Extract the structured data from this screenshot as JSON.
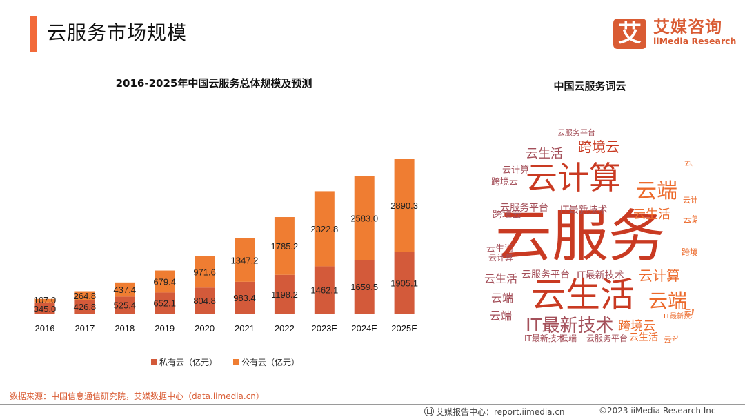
{
  "header": {
    "title": "云服务市场规模",
    "logo": {
      "mark": "艾",
      "name_cn": "艾媒咨询",
      "name_en": "iiMedia Research"
    }
  },
  "colors": {
    "accent": "#f26a3a",
    "private": "#d35a3a",
    "public": "#ef7d32",
    "brand": "#d95b33"
  },
  "chart_data": {
    "type": "bar",
    "stacked": true,
    "title": "2016-2025年中国云服务总体规模及预测",
    "xlabel": "",
    "ylabel": "",
    "categories": [
      "2016",
      "2017",
      "2018",
      "2019",
      "2020",
      "2021",
      "2022",
      "2023E",
      "2024E",
      "2025E"
    ],
    "series": [
      {
        "name": "私有云（亿元）",
        "color": "#d35a3a",
        "values": [
          345.0,
          426.8,
          525.4,
          652.1,
          804.8,
          983.4,
          1198.2,
          1462.1,
          1659.5,
          1905.1
        ]
      },
      {
        "name": "公有云（亿元）",
        "color": "#ef7d32",
        "values": [
          107.0,
          264.8,
          437.4,
          679.4,
          971.6,
          1347.2,
          1785.2,
          2322.8,
          2583.0,
          2890.3
        ]
      }
    ],
    "value_labels": [
      [
        "345.0",
        "426.8",
        "525.4",
        "652.1",
        "804.8",
        "983.4",
        "1198.2",
        "1462.1",
        "1659.5",
        "1905.1"
      ],
      [
        "107.0",
        "264.8",
        "437.4",
        "679.4",
        "971.6",
        "1347.2",
        "1785.2",
        "2322.8",
        "2583.0",
        "2890.3"
      ]
    ],
    "ylim": [
      0,
      5000
    ],
    "grid": false,
    "legend": "bottom"
  },
  "wordcloud": {
    "title": "中国云服务词云",
    "words": [
      "云服务",
      "云计算",
      "云生活",
      "IT最新技术",
      "跨境云",
      "云端",
      "云服务平台"
    ]
  },
  "footer": {
    "source": "数据来源：中国信息通信研究院，艾媒数据中心（data.iimedia.cn）",
    "report_center": "艾媒报告中心：report.iimedia.cn",
    "copyright": "©2023  iiMedia Research  Inc"
  }
}
